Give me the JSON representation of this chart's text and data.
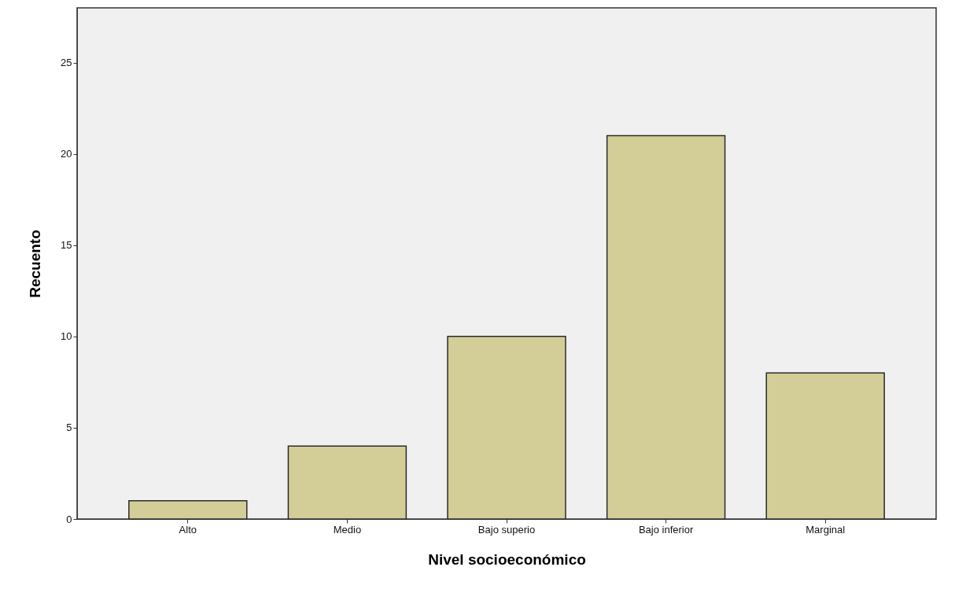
{
  "chart_data": {
    "type": "bar",
    "xlabel": "Nivel socioeconómico",
    "ylabel": "Recuento",
    "categories": [
      "Alto",
      "Medio",
      "Bajo superio",
      "Bajo inferior",
      "Marginal"
    ],
    "values": [
      1,
      4,
      10,
      21,
      8
    ],
    "color": "#d3ce97",
    "ylim": [
      0,
      28
    ],
    "yticks": [
      0,
      5,
      10,
      15,
      20,
      25
    ],
    "grid": false
  }
}
